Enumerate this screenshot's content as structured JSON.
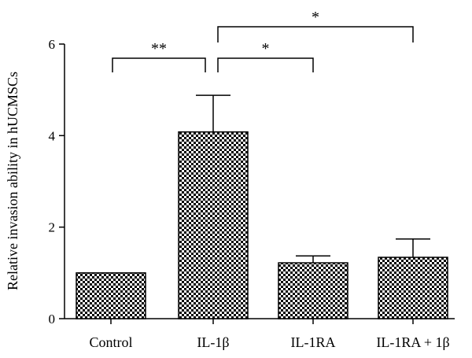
{
  "chart_data": {
    "type": "bar",
    "title": "",
    "xlabel": "",
    "ylabel": "Relative invasion ability in hUCMSCs",
    "ylim": [
      0,
      6
    ],
    "yticks": [
      0,
      2,
      4,
      6
    ],
    "categories": [
      "Control",
      "IL-1β",
      "IL-1RA",
      "IL-1RA + 1β"
    ],
    "values": [
      1.0,
      4.08,
      1.22,
      1.34
    ],
    "errors": [
      0,
      0.8,
      0.15,
      0.4
    ],
    "bar_pattern": "checkerboard",
    "grid": false,
    "significance": [
      {
        "from": 0,
        "to": 1,
        "label": "**"
      },
      {
        "from": 1,
        "to": 2,
        "label": "*"
      },
      {
        "from": 1,
        "to": 3,
        "label": "*"
      }
    ]
  }
}
